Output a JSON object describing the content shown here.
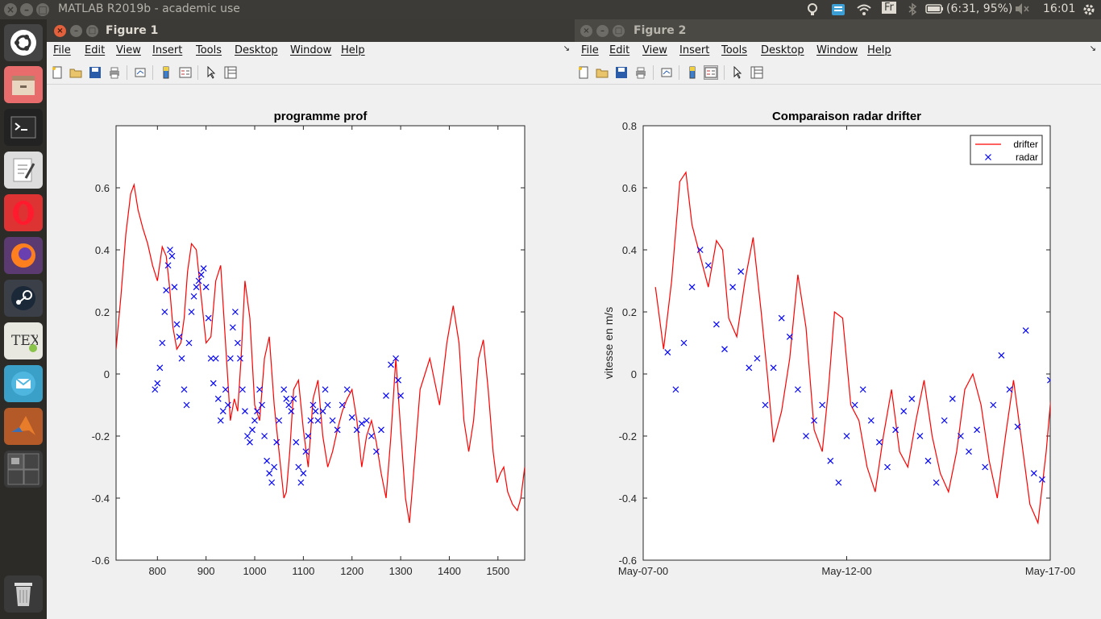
{
  "topbar": {
    "app_title": "MATLAB R2019b - academic use",
    "keyboard_layout": "Fr",
    "battery": "(6:31, 95%)",
    "clock": "16:01"
  },
  "launcher": {
    "items": [
      "ubuntu-logo-icon",
      "files-icon",
      "terminal-icon",
      "text-editor-icon",
      "opera-icon",
      "firefox-icon",
      "steam-icon",
      "tex-icon",
      "mail-icon",
      "matlab-icon",
      "workspace-switcher-icon",
      "trash-icon"
    ]
  },
  "figure1": {
    "window_title": "Figure 1",
    "menu": [
      "File",
      "Edit",
      "View",
      "Insert",
      "Tools",
      "Desktop",
      "Window",
      "Help"
    ]
  },
  "figure2": {
    "window_title": "Figure 2",
    "menu": [
      "File",
      "Edit",
      "View",
      "Insert",
      "Tools",
      "Desktop",
      "Window",
      "Help"
    ]
  },
  "chart_data": [
    {
      "type": "line",
      "title": "programme prof",
      "xlabel": "",
      "ylabel": "",
      "xlim": [
        715,
        1555
      ],
      "ylim": [
        -0.6,
        0.8
      ],
      "xticks": [
        800,
        900,
        1000,
        1100,
        1200,
        1300,
        1400,
        1500
      ],
      "yticks": [
        -0.6,
        -0.4,
        -0.2,
        0,
        0.2,
        0.4,
        0.6
      ],
      "grid": false,
      "series": [
        {
          "kind": "line",
          "color": "#ff0000",
          "x": [
            715,
            725,
            735,
            745,
            752,
            760,
            770,
            780,
            790,
            800,
            810,
            818,
            825,
            832,
            840,
            848,
            855,
            862,
            870,
            880,
            890,
            900,
            910,
            920,
            930,
            940,
            950,
            958,
            965,
            972,
            980,
            990,
            1000,
            1010,
            1020,
            1030,
            1040,
            1050,
            1060,
            1065,
            1072,
            1080,
            1090,
            1100,
            1110,
            1120,
            1130,
            1140,
            1150,
            1160,
            1170,
            1180,
            1190,
            1200,
            1210,
            1220,
            1230,
            1240,
            1250,
            1260,
            1270,
            1280,
            1290,
            1300,
            1310,
            1318,
            1325,
            1340,
            1360,
            1380,
            1395,
            1408,
            1420,
            1430,
            1440,
            1450,
            1460,
            1470,
            1480,
            1490,
            1498,
            1505,
            1512,
            1520,
            1530,
            1540,
            1547,
            1555
          ],
          "y": [
            0.08,
            0.25,
            0.45,
            0.58,
            0.61,
            0.53,
            0.47,
            0.42,
            0.35,
            0.3,
            0.41,
            0.38,
            0.28,
            0.15,
            0.08,
            0.1,
            0.18,
            0.33,
            0.42,
            0.4,
            0.25,
            0.1,
            0.12,
            0.3,
            0.35,
            0.1,
            -0.15,
            -0.08,
            -0.12,
            0.05,
            0.3,
            0.18,
            -0.1,
            -0.15,
            0.05,
            0.12,
            -0.1,
            -0.25,
            -0.4,
            -0.38,
            -0.25,
            -0.05,
            -0.02,
            -0.18,
            -0.3,
            -0.08,
            -0.02,
            -0.2,
            -0.3,
            -0.25,
            -0.18,
            -0.12,
            -0.08,
            -0.05,
            -0.15,
            -0.3,
            -0.2,
            -0.15,
            -0.22,
            -0.32,
            -0.4,
            -0.2,
            0.05,
            -0.18,
            -0.4,
            -0.48,
            -0.35,
            -0.05,
            0.05,
            -0.1,
            0.1,
            0.22,
            0.1,
            -0.15,
            -0.25,
            -0.15,
            0.05,
            0.11,
            -0.05,
            -0.25,
            -0.35,
            -0.32,
            -0.3,
            -0.38,
            -0.42,
            -0.44,
            -0.4,
            -0.3
          ]
        },
        {
          "kind": "scatter",
          "color": "#0000ff",
          "marker": "x",
          "x": [
            795,
            800,
            805,
            810,
            815,
            818,
            822,
            826,
            830,
            835,
            840,
            845,
            850,
            855,
            860,
            865,
            870,
            875,
            880,
            885,
            890,
            895,
            900,
            905,
            910,
            915,
            920,
            925,
            930,
            935,
            940,
            945,
            950,
            955,
            960,
            965,
            970,
            975,
            980,
            985,
            990,
            995,
            1000,
            1005,
            1010,
            1015,
            1020,
            1025,
            1030,
            1035,
            1040,
            1045,
            1050,
            1060,
            1065,
            1070,
            1075,
            1080,
            1085,
            1090,
            1095,
            1100,
            1105,
            1110,
            1115,
            1120,
            1125,
            1130,
            1140,
            1145,
            1150,
            1160,
            1170,
            1180,
            1190,
            1200,
            1210,
            1220,
            1230,
            1240,
            1250,
            1260,
            1270,
            1280,
            1290,
            1295,
            1300
          ],
          "y": [
            -0.05,
            -0.03,
            0.02,
            0.1,
            0.2,
            0.27,
            0.35,
            0.4,
            0.38,
            0.28,
            0.16,
            0.12,
            0.05,
            -0.05,
            -0.1,
            0.1,
            0.2,
            0.25,
            0.28,
            0.3,
            0.32,
            0.34,
            0.28,
            0.18,
            0.05,
            -0.03,
            0.05,
            -0.08,
            -0.15,
            -0.12,
            -0.05,
            -0.1,
            0.05,
            0.15,
            0.2,
            0.1,
            0.05,
            -0.05,
            -0.12,
            -0.2,
            -0.22,
            -0.18,
            -0.15,
            -0.12,
            -0.05,
            -0.1,
            -0.2,
            -0.28,
            -0.32,
            -0.35,
            -0.3,
            -0.22,
            -0.15,
            -0.05,
            -0.08,
            -0.1,
            -0.12,
            -0.08,
            -0.22,
            -0.3,
            -0.35,
            -0.32,
            -0.25,
            -0.2,
            -0.15,
            -0.1,
            -0.12,
            -0.15,
            -0.12,
            -0.05,
            -0.1,
            -0.15,
            -0.18,
            -0.1,
            -0.05,
            -0.14,
            -0.18,
            -0.16,
            -0.15,
            -0.2,
            -0.25,
            -0.18,
            -0.07,
            0.03,
            0.05,
            -0.02,
            -0.07
          ]
        }
      ]
    },
    {
      "type": "line",
      "title": "Comparaison radar drifter",
      "xlabel": "",
      "ylabel": "vitesse en m/s",
      "xlim": [
        0,
        10
      ],
      "ylim": [
        -0.6,
        0.8
      ],
      "xticks": [
        0,
        5,
        10
      ],
      "xticklabels": [
        "May-07-00",
        "May-12-00",
        "May-17-00"
      ],
      "yticks": [
        -0.6,
        -0.4,
        -0.2,
        0,
        0.2,
        0.4,
        0.6,
        0.8
      ],
      "legend": "top-right",
      "grid": false,
      "series": [
        {
          "name": "drifter",
          "kind": "line",
          "color": "#ff0000",
          "x": [
            0.3,
            0.5,
            0.7,
            0.9,
            1.05,
            1.2,
            1.4,
            1.6,
            1.8,
            1.95,
            2.1,
            2.3,
            2.5,
            2.7,
            2.9,
            3.05,
            3.2,
            3.4,
            3.6,
            3.8,
            4.0,
            4.2,
            4.4,
            4.55,
            4.7,
            4.9,
            5.1,
            5.3,
            5.5,
            5.7,
            5.9,
            6.1,
            6.3,
            6.5,
            6.7,
            6.9,
            7.1,
            7.3,
            7.5,
            7.7,
            7.9,
            8.1,
            8.3,
            8.5,
            8.7,
            8.9,
            9.1,
            9.3,
            9.5,
            9.7,
            9.9,
            10.1,
            10.3,
            10.5,
            10.7,
            10.9,
            11.1,
            11.3,
            11.5
          ],
          "y": [
            0.28,
            0.08,
            0.3,
            0.62,
            0.65,
            0.48,
            0.38,
            0.28,
            0.43,
            0.4,
            0.18,
            0.12,
            0.3,
            0.44,
            0.2,
            0.0,
            -0.22,
            -0.12,
            0.05,
            0.32,
            0.15,
            -0.18,
            -0.25,
            -0.05,
            0.2,
            0.18,
            -0.1,
            -0.15,
            -0.3,
            -0.38,
            -0.2,
            -0.05,
            -0.25,
            -0.3,
            -0.15,
            -0.02,
            -0.2,
            -0.32,
            -0.38,
            -0.25,
            -0.05,
            0.0,
            -0.1,
            -0.28,
            -0.4,
            -0.2,
            -0.02,
            -0.22,
            -0.42,
            -0.48,
            -0.25,
            0.05,
            0.25,
            0.05,
            -0.15,
            -0.22,
            0.15,
            -0.25,
            -0.42
          ]
        },
        {
          "name": "radar",
          "kind": "scatter",
          "color": "#0000ff",
          "marker": "x",
          "x": [
            0.6,
            0.8,
            1.0,
            1.2,
            1.4,
            1.6,
            1.8,
            2.0,
            2.2,
            2.4,
            2.6,
            2.8,
            3.0,
            3.2,
            3.4,
            3.6,
            3.8,
            4.0,
            4.2,
            4.4,
            4.6,
            4.8,
            5.0,
            5.2,
            5.4,
            5.6,
            5.8,
            6.0,
            6.2,
            6.4,
            6.6,
            6.8,
            7.0,
            7.2,
            7.4,
            7.6,
            7.8,
            8.0,
            8.2,
            8.4,
            8.6,
            8.8,
            9.0,
            9.2,
            9.4,
            9.6,
            9.8,
            10.0
          ],
          "y": [
            0.07,
            -0.05,
            0.1,
            0.28,
            0.4,
            0.35,
            0.16,
            0.08,
            0.28,
            0.33,
            0.02,
            0.05,
            -0.1,
            0.02,
            0.18,
            0.12,
            -0.05,
            -0.2,
            -0.15,
            -0.1,
            -0.28,
            -0.35,
            -0.2,
            -0.1,
            -0.05,
            -0.15,
            -0.22,
            -0.3,
            -0.18,
            -0.12,
            -0.08,
            -0.2,
            -0.28,
            -0.35,
            -0.15,
            -0.08,
            -0.2,
            -0.25,
            -0.18,
            -0.3,
            -0.1,
            0.06,
            -0.05,
            -0.17,
            0.14,
            -0.32,
            -0.34,
            -0.02
          ]
        }
      ]
    }
  ]
}
